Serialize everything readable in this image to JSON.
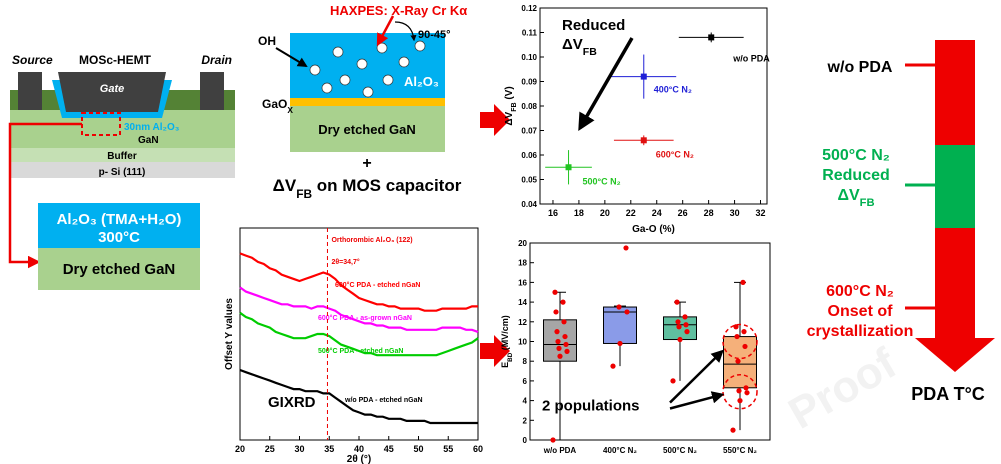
{
  "hemt": {
    "title": "MOSc-HEMT",
    "source": "Source",
    "drain": "Drain",
    "gate": "Gate",
    "oxide": "30nm Al₂O₃",
    "gan": "GaN",
    "buffer": "Buffer",
    "substrate": "p- Si (111)"
  },
  "deposition": {
    "oxide": "Al₂O₃ (TMA+H₂O)",
    "temperature": "300°C",
    "gan": "Dry etched GaN"
  },
  "haxpes": {
    "title": "HAXPES: X-Ray Cr Kα",
    "angle": "90-45°",
    "oh": "OH",
    "oxide": "Al₂O₃",
    "interlayer": {
      "main": "GaO",
      "sub": "X"
    },
    "gan": "Dry etched GaN",
    "plus": "+",
    "caption": {
      "main": "ΔV",
      "sub": "FB",
      "rest": " on MOS capacitor"
    }
  },
  "chart_data": [
    {
      "type": "scatter",
      "x_label": "Ga-O (%)",
      "y_label": {
        "main": "ΔV",
        "sub": "FB",
        "rest": " (V)"
      },
      "annotation": {
        "line1": "Reduced",
        "line2": {
          "main": "ΔV",
          "sub": "FB"
        }
      },
      "xlim": [
        15,
        32.5
      ],
      "xticks": [
        16,
        18,
        20,
        22,
        24,
        26,
        28,
        30,
        32
      ],
      "ylim": [
        0.04,
        0.12
      ],
      "yticks": [
        0.04,
        0.05,
        0.06,
        0.07,
        0.08,
        0.09,
        {
          "value": 0.1,
          "label": "0.10"
        },
        0.11,
        0.12
      ],
      "series": [
        {
          "name": "w/o PDA",
          "color": "#000000",
          "x": [
            28.2
          ],
          "values": [
            0.108
          ],
          "xerr": [
            2.5
          ],
          "yerr": [
            0.002
          ]
        },
        {
          "name": "400°C  N₂",
          "color": "#1f1fd6",
          "x": [
            23
          ],
          "values": [
            0.092
          ],
          "xerr": [
            2.5
          ],
          "yerr": [
            0.009
          ]
        },
        {
          "name": "600°C  N₂",
          "color": "#e01010",
          "x": [
            23
          ],
          "values": [
            0.066
          ],
          "xerr": [
            2.3
          ],
          "yerr": [
            0.002
          ]
        },
        {
          "name": "500°C  N₂",
          "color": "#22c422",
          "x": [
            17.2
          ],
          "values": [
            0.055
          ],
          "xerr": [
            1.8
          ],
          "yerr": [
            0.007
          ]
        }
      ]
    },
    {
      "type": "box",
      "categories": [
        "w/o PDA",
        "400°C N₂",
        "500°C N₂",
        "550°C N₂"
      ],
      "y_label": {
        "main": "E",
        "sub": "BD",
        "rest": " (MV/cm)"
      },
      "ylim": [
        0,
        20
      ],
      "yticks": [
        0,
        2,
        4,
        6,
        8,
        10,
        12,
        14,
        16,
        18,
        20
      ],
      "q1": [
        8,
        9.8,
        10.2,
        5.3
      ],
      "median": [
        9.7,
        13,
        11.7,
        7.7
      ],
      "q3": [
        12.2,
        13.5,
        12.5,
        10.5
      ],
      "whisker_low": [
        0,
        7.5,
        6,
        1
      ],
      "whisker_high": [
        15,
        13.6,
        14,
        16
      ],
      "colors": [
        "#a6a6a6",
        "#8a9be8",
        "#5fbf9f",
        "#f5b07a"
      ],
      "points": [
        [
          0,
          8.5,
          9,
          9.3,
          9.7,
          10,
          10.5,
          11,
          12,
          13,
          14,
          15
        ],
        [
          7.5,
          9.8,
          13,
          13.5,
          19.5
        ],
        [
          6,
          10.2,
          11,
          11.5,
          11.7,
          12,
          12.5,
          14
        ],
        [
          1,
          4,
          4.8,
          5,
          5.3,
          8,
          9.5,
          10.5,
          11,
          11.5,
          16
        ]
      ],
      "annotation": "2 populations"
    },
    {
      "type": "line",
      "x_label": "2θ (°)",
      "y_label": "Offset Y values",
      "annotation": "GIXRD",
      "x": [
        20,
        21,
        22,
        23,
        24,
        25,
        26,
        27,
        28,
        29,
        30,
        31,
        32,
        33,
        34,
        35,
        36,
        37,
        38,
        39,
        40,
        41,
        42,
        43,
        44,
        45,
        46,
        47,
        48,
        49,
        50,
        51,
        52,
        53,
        54,
        55,
        56,
        57,
        58,
        59,
        60
      ],
      "xlim": [
        20,
        60
      ],
      "xticks": [
        20,
        25,
        30,
        35,
        40,
        45,
        50,
        55,
        60
      ],
      "ylim": [
        0,
        100
      ],
      "vline": 34.7,
      "vline_labels": [
        "Orthorombic Al₂O₃ (122)",
        "2θ=34,7°"
      ],
      "series": [
        {
          "name": "600°C PDA - etched nGaN",
          "color": "#ff0000",
          "values": [
            88,
            87,
            86,
            84,
            83,
            81,
            80,
            78,
            77,
            76,
            75,
            76,
            77,
            78,
            79,
            78,
            76,
            73,
            71,
            69,
            67,
            66,
            65,
            64,
            64,
            63,
            63,
            62,
            62,
            62,
            62,
            61,
            61,
            61,
            62,
            62,
            62,
            62,
            62,
            63,
            63
          ]
        },
        {
          "name": "600°C PDA - as-grown nGaN",
          "color": "#ff00ff",
          "values": [
            72,
            70,
            69,
            68,
            67,
            66,
            65,
            64,
            64,
            63,
            63,
            63,
            62,
            63,
            63,
            62,
            61,
            59,
            58,
            57,
            56,
            55,
            55,
            54,
            54,
            53,
            53,
            53,
            52,
            52,
            52,
            52,
            52,
            52,
            53,
            53,
            53,
            53,
            52,
            52,
            51
          ]
        },
        {
          "name": "500°C PDA - etched nGaN",
          "color": "#00cc00",
          "values": [
            60,
            58,
            57,
            55,
            54,
            53,
            51,
            50,
            49,
            48,
            48,
            48,
            49,
            50,
            50,
            49,
            47,
            45,
            44,
            43,
            42,
            41,
            41,
            40,
            40,
            40,
            40,
            40,
            40,
            40,
            40,
            40,
            40,
            40,
            41,
            42,
            43,
            44,
            45,
            46,
            48
          ]
        },
        {
          "name": "w/o PDA - etched nGaN",
          "color": "#000000",
          "values": [
            33,
            32,
            31,
            30,
            29,
            28,
            27,
            26,
            25,
            24,
            24,
            23,
            23,
            23,
            22,
            22,
            20,
            18,
            16,
            14,
            13,
            12,
            12,
            11,
            11,
            10,
            10,
            10,
            9,
            9,
            9,
            9,
            8,
            8,
            8,
            8,
            8,
            8,
            8,
            8,
            8
          ]
        }
      ]
    }
  ],
  "summary": {
    "top": "w/o PDA",
    "middle": [
      "500°C N₂",
      "Reduced",
      {
        "main": "ΔV",
        "sub": "FB"
      }
    ],
    "bottom": [
      "600°C N₂",
      "Onset of",
      "crystallization"
    ],
    "axis": "PDA T°C"
  },
  "watermark": "Proof"
}
